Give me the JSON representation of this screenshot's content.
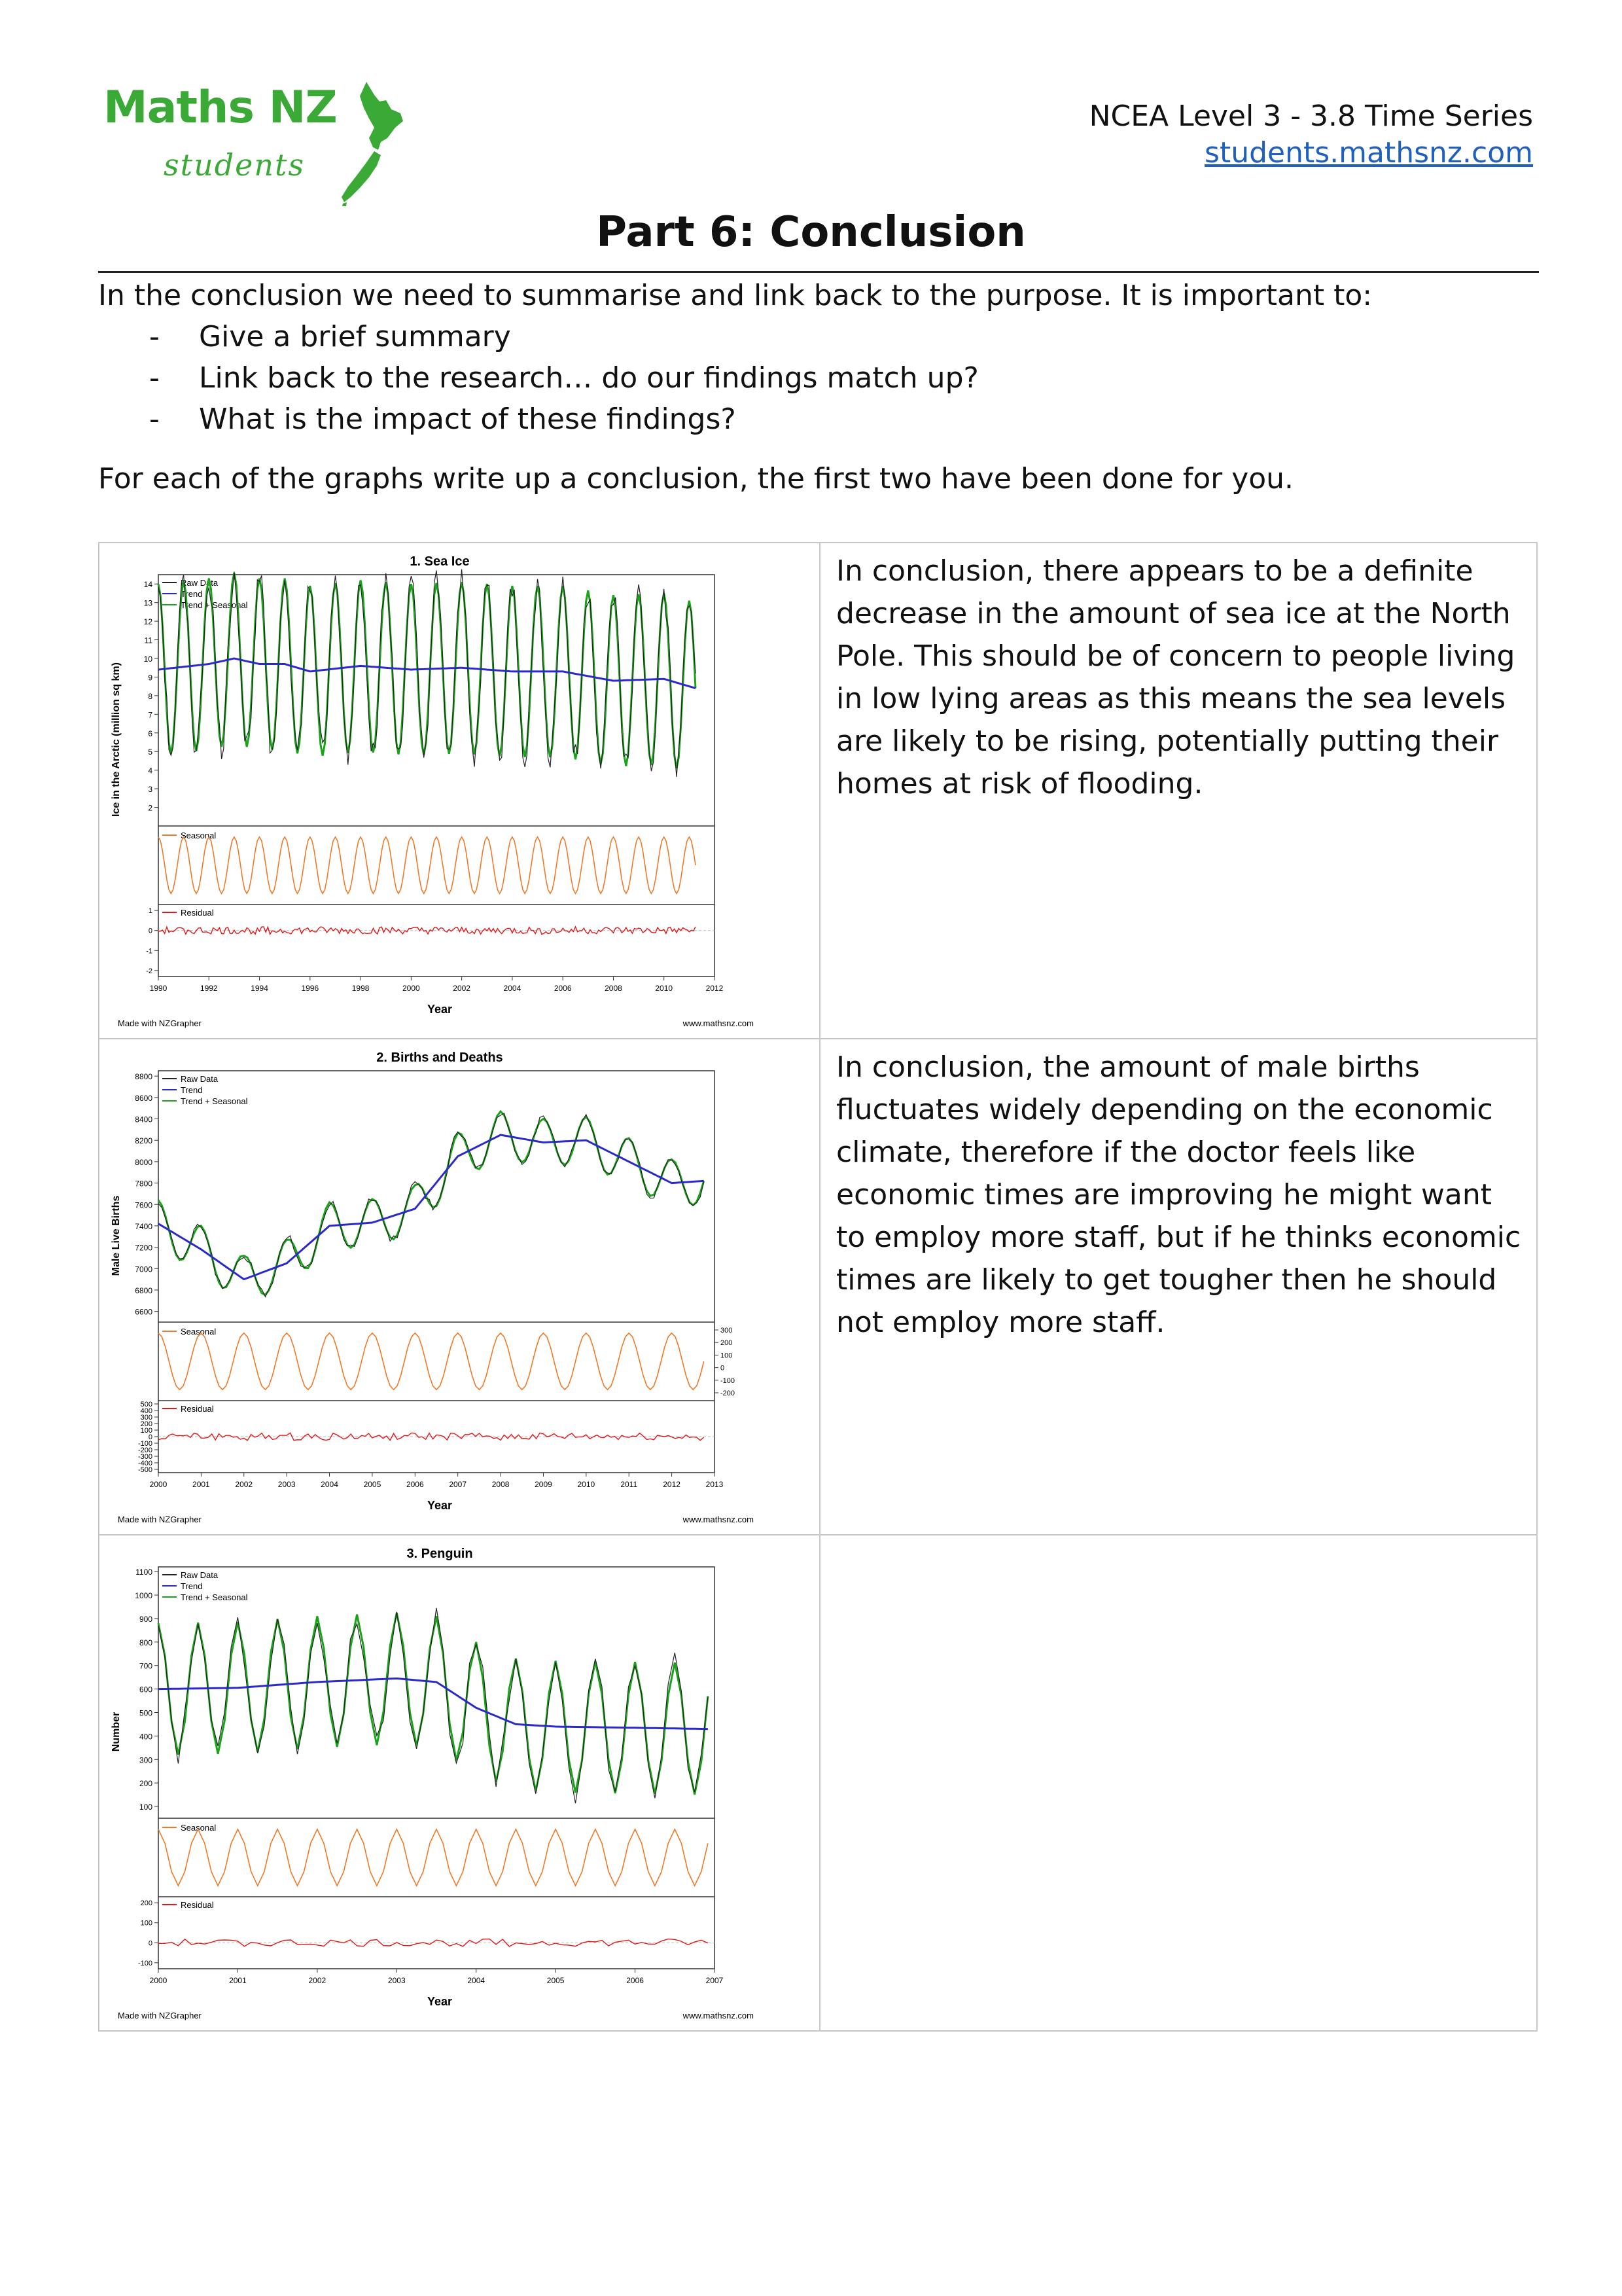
{
  "logo": {
    "brand": "Maths NZ",
    "sub": "students"
  },
  "header": {
    "course": "NCEA Level 3 - 3.8 Time Series",
    "site": "students.mathsnz.com"
  },
  "title": "Part 6: Conclusion",
  "intro": {
    "lead": "In the conclusion we need to summarise and link back to the purpose. It is important to:",
    "bullets": [
      "Give a brief summary",
      "Link back to the research… do our findings match up?",
      "What is the impact of these findings?"
    ],
    "instruction": "For each of the graphs write up a conclusion, the first two have been done for you."
  },
  "rows": [
    {
      "conclusion": "In conclusion, there appears to be a definite decrease in the amount of sea ice at the North Pole. This should be of concern to people living in low lying areas as this means the sea levels are likely to be rising, potentially putting their homes at risk of flooding."
    },
    {
      "conclusion": "In conclusion, the amount of male births fluctuates widely depending on the economic climate, therefore if the doctor feels like economic times are improving he might want to employ more staff, but if he thinks economic times are likely to get tougher then he should not employ more staff."
    },
    {
      "conclusion": ""
    }
  ],
  "chart_data": [
    {
      "type": "line",
      "title": "1. Sea Ice",
      "xlabel": "Year",
      "ylabel": "Ice in the Arctic (million sq km)",
      "footer_left": "Made with NZGrapher",
      "footer_right": "www.mathsnz.com",
      "legend": [
        "Raw Data",
        "Trend",
        "Trend + Seasonal"
      ],
      "seasonal_label": "Seasonal",
      "residual_label": "Residual",
      "xlim": [
        1990,
        2012
      ],
      "x_ticks": [
        "1990",
        "1992",
        "1994",
        "1996",
        "1998",
        "2000",
        "2002",
        "2004",
        "2006",
        "2008",
        "2010",
        "2012"
      ],
      "ylim": [
        1,
        14.5
      ],
      "y_ticks": [
        "2",
        "3",
        "4",
        "5",
        "6",
        "7",
        "8",
        "9",
        "10",
        "11",
        "12",
        "13",
        "14"
      ],
      "residual_ticks": [
        "1",
        "0",
        "-1",
        "-2"
      ],
      "residual_lim": [
        -2.3,
        1.3
      ],
      "series_start": 1990,
      "series_end": 2011.25,
      "period": 1,
      "trend": [
        [
          1990,
          9.4
        ],
        [
          1992,
          9.7
        ],
        [
          1993,
          10.0
        ],
        [
          1994,
          9.7
        ],
        [
          1995,
          9.7
        ],
        [
          1996,
          9.3
        ],
        [
          1998,
          9.6
        ],
        [
          2000,
          9.4
        ],
        [
          2002,
          9.5
        ],
        [
          2004,
          9.3
        ],
        [
          2006,
          9.3
        ],
        [
          2008,
          8.8
        ],
        [
          2010,
          8.9
        ],
        [
          2011.25,
          8.4
        ]
      ],
      "amplitude": 4.6
    },
    {
      "type": "line",
      "title": "2. Births and Deaths",
      "xlabel": "Year",
      "ylabel": "Male Live Births",
      "footer_left": "Made with NZGrapher",
      "footer_right": "www.mathsnz.com",
      "legend": [
        "Raw Data",
        "Trend",
        "Trend + Seasonal"
      ],
      "seasonal_label": "Seasonal",
      "residual_label": "Residual",
      "xlim": [
        2000,
        2013
      ],
      "x_ticks": [
        "2000",
        "2001",
        "2002",
        "2003",
        "2004",
        "2005",
        "2006",
        "2007",
        "2008",
        "2009",
        "2010",
        "2011",
        "2012",
        "2013"
      ],
      "ylim": [
        6500,
        8850
      ],
      "y_ticks": [
        "6600",
        "6800",
        "7000",
        "7200",
        "7400",
        "7600",
        "7800",
        "8000",
        "8200",
        "8400",
        "8600",
        "8800"
      ],
      "seasonal_ticks": [
        "300",
        "200",
        "100",
        "0",
        "-100",
        "-200"
      ],
      "residual_ticks": [
        "500",
        "400",
        "300",
        "200",
        "100",
        "0",
        "-100",
        "-200",
        "-300",
        "-400",
        "-500"
      ],
      "residual_lim": [
        -550,
        550
      ],
      "series_start": 2000,
      "series_end": 2012.75,
      "period": 1,
      "trend": [
        [
          2000,
          7420
        ],
        [
          2001,
          7180
        ],
        [
          2002,
          6900
        ],
        [
          2003,
          7050
        ],
        [
          2004,
          7400
        ],
        [
          2005,
          7430
        ],
        [
          2006,
          7560
        ],
        [
          2007,
          8050
        ],
        [
          2008,
          8250
        ],
        [
          2009,
          8180
        ],
        [
          2010,
          8200
        ],
        [
          2011,
          8000
        ],
        [
          2012,
          7800
        ],
        [
          2012.75,
          7820
        ]
      ],
      "amplitude": 220
    },
    {
      "type": "line",
      "title": "3. Penguin",
      "xlabel": "Year",
      "ylabel": "Number",
      "footer_left": "Made with NZGrapher",
      "footer_right": "www.mathsnz.com",
      "legend": [
        "Raw Data",
        "Trend",
        "Trend + Seasonal"
      ],
      "seasonal_label": "Seasonal",
      "residual_label": "Residual",
      "xlim": [
        2000,
        2007
      ],
      "x_ticks": [
        "2000",
        "2001",
        "2002",
        "2003",
        "2004",
        "2005",
        "2006",
        "2007"
      ],
      "ylim": [
        50,
        1120
      ],
      "y_ticks": [
        "100",
        "200",
        "300",
        "400",
        "500",
        "600",
        "700",
        "800",
        "900",
        "1000",
        "1100"
      ],
      "residual_ticks": [
        "200",
        "100",
        "0",
        "-100"
      ],
      "residual_lim": [
        -130,
        230
      ],
      "series_start": 2000,
      "series_end": 2006.9,
      "period": 0.5,
      "trend": [
        [
          2000,
          600
        ],
        [
          2001,
          605
        ],
        [
          2002,
          630
        ],
        [
          2003,
          645
        ],
        [
          2003.5,
          630
        ],
        [
          2004,
          520
        ],
        [
          2004.5,
          450
        ],
        [
          2005,
          440
        ],
        [
          2006,
          435
        ],
        [
          2006.9,
          430
        ]
      ],
      "amplitude": 280
    }
  ]
}
